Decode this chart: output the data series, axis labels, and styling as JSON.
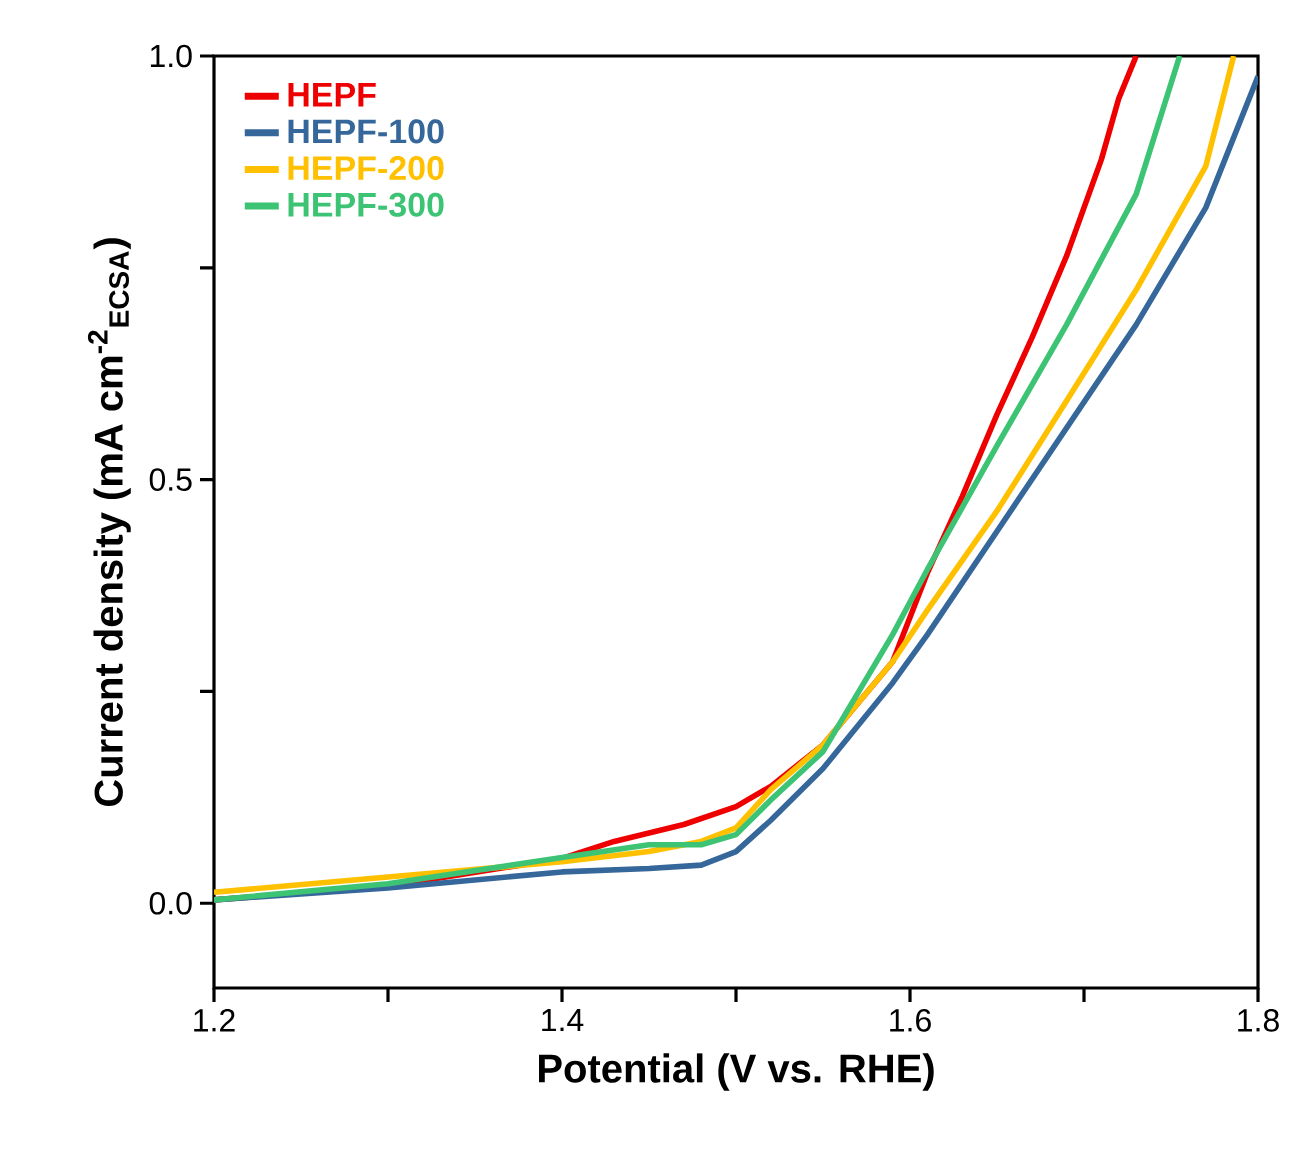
{
  "chart_data": {
    "type": "line",
    "xlabel": "Potential (V vs. RHE)",
    "ylabel": "Current density (mA cm$^{-2}$$_{ECSA}$)",
    "xlim": [
      1.2,
      1.8
    ],
    "ylim": [
      -0.1,
      1.0
    ],
    "xticks": [
      1.2,
      {
        "value": 1.3,
        "label": null
      },
      1.4,
      {
        "value": 1.5,
        "label": null
      },
      1.6,
      {
        "value": 1.7,
        "label": null
      },
      1.8
    ],
    "yticks": [
      {
        "value": 0,
        "label": "0.0"
      },
      {
        "value": 0.25,
        "label": null
      },
      0.5,
      {
        "value": 0.75,
        "label": null
      },
      {
        "value": 1,
        "label": "1.0"
      }
    ],
    "legend": "top left",
    "marker": "none",
    "line_style": "solid",
    "series": [
      {
        "name": "HEPF",
        "color": "#ee0000",
        "x": [
          1.2,
          1.3,
          1.4,
          1.43,
          1.47,
          1.5,
          1.52,
          1.55,
          1.59,
          1.61,
          1.63,
          1.65,
          1.67,
          1.69,
          1.71,
          1.72,
          1.73
        ],
        "values": [
          0.004,
          0.02,
          0.053,
          0.073,
          0.093,
          0.114,
          0.138,
          0.187,
          0.285,
          0.39,
          0.48,
          0.577,
          0.667,
          0.764,
          0.878,
          0.95,
          1.0
        ]
      },
      {
        "name": "HEPF-100",
        "color": "#35679a",
        "x": [
          1.2,
          1.3,
          1.4,
          1.45,
          1.48,
          1.5,
          1.52,
          1.55,
          1.59,
          1.61,
          1.65,
          1.69,
          1.73,
          1.77,
          1.8
        ],
        "values": [
          0.004,
          0.018,
          0.037,
          0.041,
          0.045,
          0.061,
          0.098,
          0.159,
          0.26,
          0.317,
          0.439,
          0.561,
          0.683,
          0.821,
          0.976
        ]
      },
      {
        "name": "HEPF-200",
        "color": "#ffc000",
        "x": [
          1.2,
          1.3,
          1.4,
          1.45,
          1.48,
          1.5,
          1.52,
          1.55,
          1.59,
          1.61,
          1.65,
          1.69,
          1.73,
          1.77,
          1.786
        ],
        "values": [
          0.013,
          0.031,
          0.049,
          0.061,
          0.073,
          0.089,
          0.134,
          0.187,
          0.285,
          0.346,
          0.463,
          0.593,
          0.724,
          0.87,
          1.0
        ]
      },
      {
        "name": "HEPF-300",
        "color": "#3cc374",
        "x": [
          1.2,
          1.3,
          1.4,
          1.45,
          1.48,
          1.5,
          1.52,
          1.55,
          1.59,
          1.61,
          1.65,
          1.69,
          1.73,
          1.755
        ],
        "values": [
          0.004,
          0.023,
          0.054,
          0.069,
          0.069,
          0.081,
          0.122,
          0.179,
          0.317,
          0.394,
          0.54,
          0.683,
          0.837,
          1.0
        ]
      }
    ]
  }
}
